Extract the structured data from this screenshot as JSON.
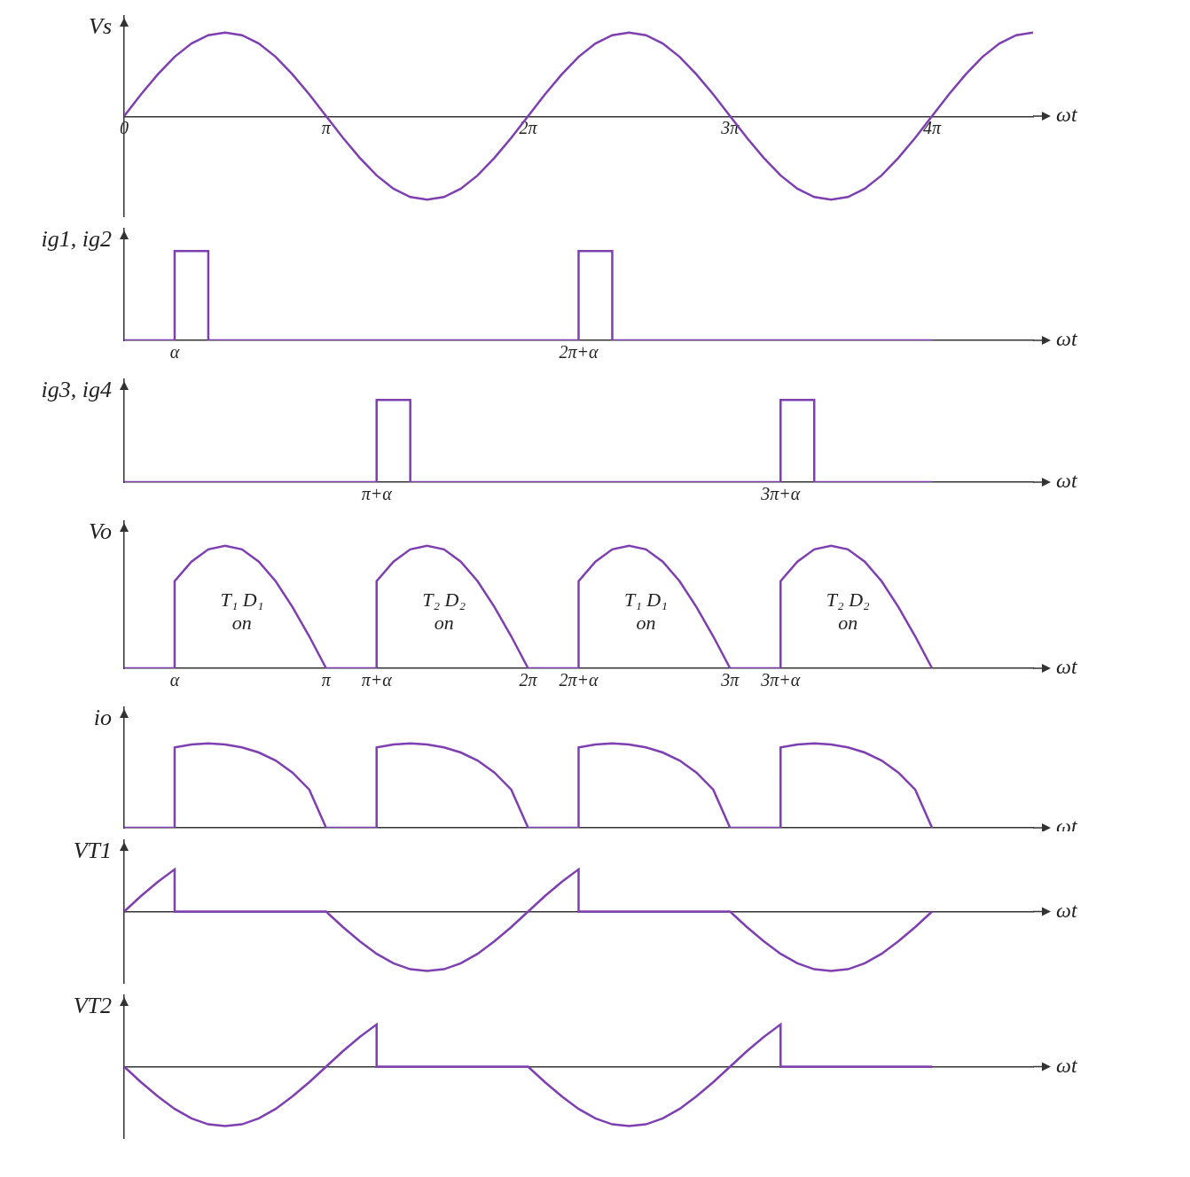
{
  "chart_data": [
    {
      "type": "line",
      "ylabel": "Vs",
      "xlabel": "ωt",
      "color": "#7e3fb0",
      "x": [
        0,
        15,
        30,
        45,
        60,
        75,
        90,
        105,
        120,
        135,
        150,
        165,
        180,
        195,
        210,
        225,
        240,
        255,
        270,
        285,
        300,
        315,
        330,
        345,
        360,
        375,
        390,
        405,
        420,
        435,
        450,
        465,
        480,
        495,
        510,
        525,
        540,
        555,
        570,
        585,
        600,
        615,
        630,
        645,
        660,
        675,
        690,
        705,
        720,
        735,
        750,
        765,
        780,
        795,
        810
      ],
      "values": [
        0,
        0.26,
        0.5,
        0.71,
        0.87,
        0.97,
        1,
        0.97,
        0.87,
        0.71,
        0.5,
        0.26,
        0,
        -0.26,
        -0.5,
        -0.71,
        -0.87,
        -0.97,
        -1,
        -0.97,
        -0.87,
        -0.71,
        -0.5,
        -0.26,
        0,
        0.26,
        0.5,
        0.71,
        0.87,
        0.97,
        1,
        0.97,
        0.87,
        0.71,
        0.5,
        0.26,
        0,
        -0.26,
        -0.5,
        -0.71,
        -0.87,
        -0.97,
        -1,
        -0.97,
        -0.87,
        -0.71,
        -0.5,
        -0.26,
        0,
        0.26,
        0.5,
        0.71,
        0.87,
        0.97,
        1
      ],
      "xlim": [
        0,
        810
      ],
      "ylim": [
        -1.2,
        1.2
      ],
      "xticks": [
        0,
        {
          "value": 180,
          "label": "π"
        },
        {
          "value": 360,
          "label": "2π"
        },
        {
          "value": 540,
          "label": "3π"
        },
        {
          "value": 720,
          "label": "4π"
        }
      ],
      "tick_labels": "x",
      "grid": false
    },
    {
      "type": "line",
      "ylabel": "ig1, ig2",
      "xlabel": "ωt",
      "color": "#7e3fb0",
      "x": [
        0,
        45,
        45,
        75,
        75,
        405,
        405,
        435,
        435,
        720
      ],
      "values": [
        0,
        0,
        0.8,
        0.8,
        0,
        0,
        0.8,
        0.8,
        0,
        0
      ],
      "xlim": [
        0,
        810
      ],
      "ylim": [
        0,
        1
      ],
      "xticks": [
        {
          "value": 45,
          "label": "α"
        },
        {
          "value": 405,
          "label": "2π+α"
        }
      ],
      "tick_labels": "x",
      "grid": false
    },
    {
      "type": "line",
      "ylabel": "ig3, ig4",
      "xlabel": "ωt",
      "color": "#7e3fb0",
      "x": [
        0,
        225,
        225,
        255,
        255,
        585,
        585,
        615,
        615,
        720
      ],
      "values": [
        0,
        0,
        0.8,
        0.8,
        0,
        0,
        0.8,
        0.8,
        0,
        0
      ],
      "xlim": [
        0,
        810
      ],
      "ylim": [
        0,
        1
      ],
      "xticks": [
        {
          "value": 225,
          "label": "π+α"
        },
        {
          "value": 585,
          "label": "3π+α"
        }
      ],
      "tick_labels": "x",
      "grid": false
    },
    {
      "type": "line",
      "ylabel": "Vo",
      "xlabel": "ωt",
      "color": "#7e3fb0",
      "x": [
        0,
        45,
        45,
        60,
        75,
        90,
        105,
        120,
        135,
        150,
        165,
        180,
        225,
        225,
        240,
        255,
        270,
        285,
        300,
        315,
        330,
        345,
        360,
        405,
        405,
        420,
        435,
        450,
        465,
        480,
        495,
        510,
        525,
        540,
        585,
        585,
        600,
        615,
        630,
        645,
        660,
        675,
        690,
        705,
        720
      ],
      "values": [
        0,
        0,
        0.71,
        0.87,
        0.97,
        1,
        0.97,
        0.87,
        0.71,
        0.5,
        0.26,
        0,
        0,
        0.71,
        0.87,
        0.97,
        1,
        0.97,
        0.87,
        0.71,
        0.5,
        0.26,
        0,
        0,
        0.71,
        0.87,
        0.97,
        1,
        0.97,
        0.87,
        0.71,
        0.5,
        0.26,
        0,
        0,
        0.71,
        0.87,
        0.97,
        1,
        0.97,
        0.87,
        0.71,
        0.5,
        0.26,
        0
      ],
      "xlim": [
        0,
        810
      ],
      "ylim": [
        0,
        1.2
      ],
      "xticks": [
        {
          "value": 45,
          "label": "α"
        },
        {
          "value": 180,
          "label": "π"
        },
        {
          "value": 225,
          "label": "π+α"
        },
        {
          "value": 360,
          "label": "2π"
        },
        {
          "value": 405,
          "label": "2π+α"
        },
        {
          "value": 540,
          "label": "3π"
        },
        {
          "value": 585,
          "label": "3π+α"
        }
      ],
      "tick_labels": "x",
      "grid": false,
      "annotations": [
        {
          "text": "T₁ D₁ on",
          "x": 105,
          "y": 0.55
        },
        {
          "text": "T₂ D₂ on",
          "x": 285,
          "y": 0.55
        },
        {
          "text": "T₁ D₁ on",
          "x": 465,
          "y": 0.55
        },
        {
          "text": "T₂ D₂ on",
          "x": 645,
          "y": 0.55
        }
      ]
    },
    {
      "type": "line",
      "ylabel": "io",
      "xlabel": "ωt",
      "color": "#7e3fb0",
      "x": [
        0,
        45,
        45,
        60,
        75,
        90,
        105,
        120,
        135,
        150,
        165,
        180,
        225,
        225,
        240,
        255,
        270,
        285,
        300,
        315,
        330,
        345,
        360,
        405,
        405,
        420,
        435,
        450,
        465,
        480,
        495,
        510,
        525,
        540,
        585,
        585,
        600,
        615,
        630,
        645,
        660,
        675,
        690,
        705,
        720
      ],
      "values": [
        0,
        0,
        0.8,
        0.83,
        0.84,
        0.83,
        0.8,
        0.75,
        0.67,
        0.55,
        0.38,
        0,
        0,
        0.8,
        0.83,
        0.84,
        0.83,
        0.8,
        0.75,
        0.67,
        0.55,
        0.38,
        0,
        0,
        0.8,
        0.83,
        0.84,
        0.83,
        0.8,
        0.75,
        0.67,
        0.55,
        0.38,
        0,
        0,
        0.8,
        0.83,
        0.84,
        0.83,
        0.8,
        0.75,
        0.67,
        0.55,
        0.38,
        0
      ],
      "xlim": [
        0,
        810
      ],
      "ylim": [
        0,
        1.2
      ],
      "tick_labels": false,
      "grid": false
    },
    {
      "type": "line",
      "ylabel": "VT1",
      "xlabel": "ωt",
      "color": "#7e3fb0",
      "x": [
        0,
        15,
        30,
        45,
        45,
        180,
        195,
        210,
        225,
        240,
        255,
        270,
        285,
        300,
        315,
        330,
        345,
        360,
        375,
        390,
        405,
        405,
        540,
        555,
        570,
        585,
        600,
        615,
        630,
        645,
        660,
        675,
        690,
        705,
        720
      ],
      "values": [
        0,
        0.26,
        0.5,
        0.71,
        0,
        0,
        -0.26,
        -0.5,
        -0.71,
        -0.87,
        -0.97,
        -1,
        -0.97,
        -0.87,
        -0.71,
        -0.5,
        -0.26,
        0,
        0.26,
        0.5,
        0.71,
        0,
        0,
        -0.26,
        -0.5,
        -0.71,
        -0.87,
        -0.97,
        -1,
        -0.97,
        -0.87,
        -0.71,
        -0.5,
        -0.26,
        0
      ],
      "xlim": [
        0,
        810
      ],
      "ylim": [
        -1.2,
        1.2
      ],
      "tick_labels": false,
      "grid": false
    },
    {
      "type": "line",
      "ylabel": "VT2",
      "xlabel": "ωt",
      "color": "#7e3fb0",
      "x": [
        0,
        15,
        30,
        45,
        60,
        75,
        90,
        105,
        120,
        135,
        150,
        165,
        180,
        195,
        210,
        225,
        225,
        360,
        375,
        390,
        405,
        420,
        435,
        450,
        465,
        480,
        495,
        510,
        525,
        540,
        555,
        570,
        585,
        585,
        720
      ],
      "values": [
        0,
        -0.26,
        -0.5,
        -0.71,
        -0.87,
        -0.97,
        -1,
        -0.97,
        -0.87,
        -0.71,
        -0.5,
        -0.26,
        0,
        0.26,
        0.5,
        0.71,
        0,
        0,
        -0.26,
        -0.5,
        -0.71,
        -0.87,
        -0.97,
        -1,
        -0.97,
        -0.87,
        -0.71,
        -0.5,
        -0.26,
        0,
        0.26,
        0.5,
        0.71,
        0,
        0
      ],
      "xlim": [
        0,
        810
      ],
      "ylim": [
        -1.2,
        1.2
      ],
      "tick_labels": false,
      "grid": false
    }
  ]
}
